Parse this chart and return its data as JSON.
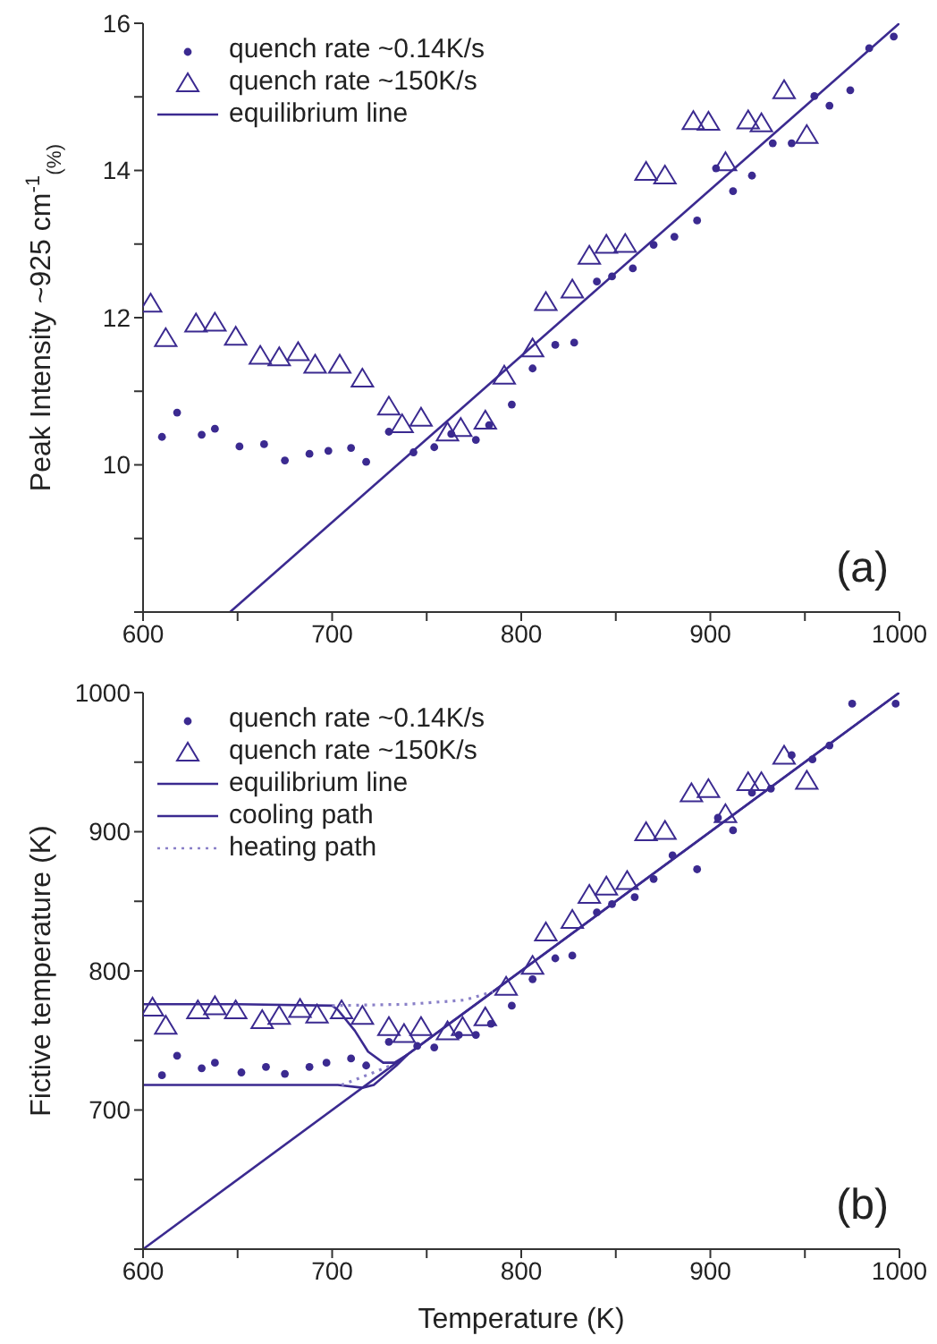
{
  "chart_data": [
    {
      "type": "scatter",
      "ylabel": "Peak Intensity ~925 cm$^{-1}$$_{(%)}$",
      "xlim": [
        600,
        1000
      ],
      "ylim": [
        8,
        16
      ],
      "xticks": [
        600,
        {
          "value": 650,
          "label": null
        },
        700,
        {
          "value": 750,
          "label": null
        },
        800,
        {
          "value": 850,
          "label": null
        },
        900,
        {
          "value": 950,
          "label": null
        },
        1000
      ],
      "yticks": [
        {
          "value": 8,
          "label": null
        },
        {
          "value": 9,
          "label": null
        },
        10,
        {
          "value": 11,
          "label": null
        },
        12,
        {
          "value": 13,
          "label": null
        },
        14,
        {
          "value": 15,
          "label": null
        },
        16
      ],
      "legend": "top left",
      "annotations": [
        "(a)"
      ],
      "series": [
        {
          "name": "quench rate ~0.14K/s",
          "marker": "circle",
          "color": "#3b2a90",
          "x": [
            610,
            618,
            631,
            638,
            651,
            664,
            675,
            688,
            698,
            710,
            718,
            730,
            743,
            754,
            763,
            776,
            783,
            795,
            806,
            818,
            828,
            840,
            848,
            859,
            870,
            881,
            893,
            903,
            912,
            922,
            933,
            943,
            955,
            963,
            974,
            984,
            997
          ],
          "values": [
            10.38,
            10.71,
            10.41,
            10.49,
            10.25,
            10.28,
            10.06,
            10.15,
            10.19,
            10.23,
            10.04,
            10.45,
            10.17,
            10.24,
            10.42,
            10.34,
            10.54,
            10.82,
            11.31,
            11.63,
            11.66,
            12.49,
            12.56,
            12.67,
            12.99,
            13.1,
            13.32,
            14.03,
            13.72,
            13.93,
            14.37,
            14.37,
            15.01,
            14.88,
            15.09,
            15.66,
            15.82
          ]
        },
        {
          "name": "quench rate ~150K/s",
          "marker": "triangle",
          "color": "#3b2a90",
          "x": [
            604,
            612,
            628,
            638,
            649,
            662,
            672,
            682,
            691,
            704,
            716,
            730,
            737,
            747,
            761,
            768,
            781,
            791,
            806,
            813,
            827,
            836,
            845,
            855,
            866,
            876,
            891,
            899,
            908,
            920,
            927,
            939,
            951
          ],
          "values": [
            12.18,
            11.71,
            11.91,
            11.92,
            11.73,
            11.47,
            11.45,
            11.52,
            11.35,
            11.35,
            11.16,
            10.78,
            10.54,
            10.63,
            10.43,
            10.49,
            10.59,
            11.2,
            11.57,
            12.2,
            12.37,
            12.83,
            12.98,
            12.99,
            13.97,
            13.92,
            14.66,
            14.65,
            14.1,
            14.67,
            14.63,
            15.08,
            14.47
          ]
        },
        {
          "name": "equilibrium line",
          "type": "line",
          "line_style": "solid",
          "color": "#3b2a90",
          "x": [
            646,
            1000
          ],
          "values": [
            8,
            16
          ]
        }
      ]
    },
    {
      "type": "scatter",
      "xlabel": "Temperature (K)",
      "ylabel": "Fictive temperature (K)",
      "xlim": [
        600,
        1000
      ],
      "ylim": [
        600,
        1000
      ],
      "xticks": [
        600,
        {
          "value": 650,
          "label": null
        },
        700,
        {
          "value": 750,
          "label": null
        },
        800,
        {
          "value": 850,
          "label": null
        },
        900,
        {
          "value": 950,
          "label": null
        },
        1000
      ],
      "yticks": [
        {
          "value": 600,
          "label": null
        },
        {
          "value": 650,
          "label": null
        },
        700,
        {
          "value": 750,
          "label": null
        },
        800,
        {
          "value": 850,
          "label": null
        },
        900,
        {
          "value": 950,
          "label": null
        },
        1000
      ],
      "legend": "top left",
      "annotations": [
        "(b)"
      ],
      "series": [
        {
          "name": "quench rate ~0.14K/s",
          "marker": "circle",
          "color": "#3b2a90",
          "x": [
            610,
            618,
            631,
            638,
            652,
            665,
            675,
            688,
            697,
            710,
            718,
            730,
            745,
            754,
            767,
            776,
            784,
            795,
            806,
            818,
            827,
            840,
            848,
            860,
            870,
            880,
            893,
            904,
            912,
            922,
            932,
            943,
            954,
            963,
            975,
            998
          ],
          "values": [
            725,
            739,
            730,
            734,
            727,
            731,
            726,
            731,
            734,
            737,
            732,
            749,
            746,
            745,
            754,
            754,
            762,
            775,
            794,
            809,
            811,
            842,
            848,
            853,
            866,
            883,
            873,
            910,
            901,
            928,
            931,
            955,
            952,
            962,
            992,
            992
          ]
        },
        {
          "name": "quench rate ~150K/s",
          "marker": "triangle",
          "color": "#3b2a90",
          "x": [
            605,
            612,
            629,
            638,
            649,
            663,
            672,
            683,
            692,
            705,
            716,
            730,
            738,
            747,
            761,
            769,
            781,
            792,
            806,
            813,
            827,
            836,
            845,
            856,
            866,
            876,
            890,
            899,
            908,
            920,
            927,
            939,
            951
          ],
          "values": [
            773,
            760,
            771,
            774,
            771,
            764,
            767,
            772,
            768,
            771,
            767,
            759,
            754,
            759,
            756,
            759,
            766,
            788,
            803,
            827,
            836,
            854,
            860,
            864,
            899,
            900,
            927,
            930,
            912,
            935,
            935,
            954,
            936
          ]
        },
        {
          "name": "equilibrium line",
          "type": "line",
          "line_style": "solid",
          "color": "#3b2a90",
          "x": [
            600,
            1000
          ],
          "values": [
            600,
            1000
          ]
        },
        {
          "name": "cooling path",
          "type": "line",
          "line_style": "solid",
          "color": "#3b2a90",
          "x": [
            600,
            650,
            700,
            703,
            712,
            719,
            727,
            733,
            740,
            1000
          ],
          "values": [
            776,
            776,
            775,
            772,
            757,
            742,
            734,
            734,
            740,
            1000
          ]
        },
        {
          "type": "line",
          "line_style": "solid",
          "color": "#3b2a90",
          "x": [
            600,
            650,
            703,
            716,
            722,
            728,
            734,
            740
          ],
          "values": [
            718,
            718,
            718,
            716,
            718,
            725,
            732,
            740
          ]
        },
        {
          "name": "heating path",
          "type": "line",
          "line_style": "dotted",
          "color": "#8a80c8",
          "x": [
            700,
            740,
            770,
            785
          ],
          "values": [
            775,
            776,
            779,
            785
          ]
        },
        {
          "type": "line",
          "line_style": "dotted",
          "color": "#8a80c8",
          "x": [
            705,
            722,
            731
          ],
          "values": [
            718,
            727,
            732
          ]
        }
      ]
    }
  ]
}
